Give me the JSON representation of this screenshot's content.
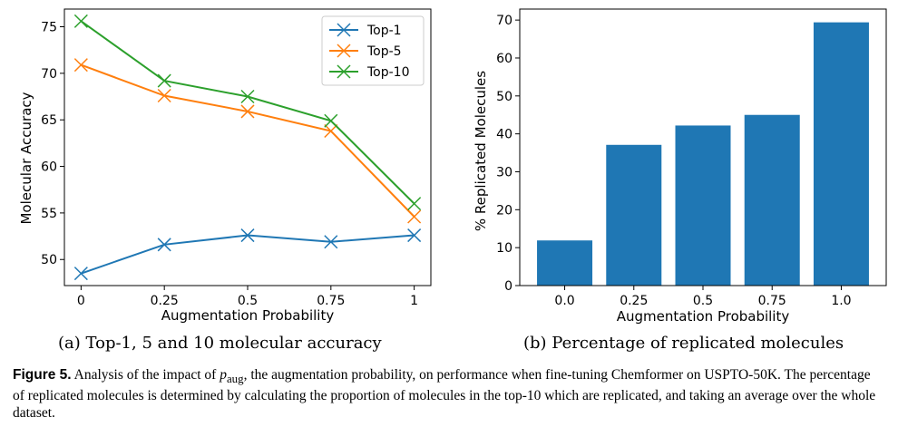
{
  "chart_data": [
    {
      "type": "line",
      "x": [
        0,
        0.25,
        0.5,
        0.75,
        1
      ],
      "xticks": [
        "0",
        "0.25",
        "0.5",
        "0.75",
        "1"
      ],
      "series": [
        {
          "name": "Top-1",
          "values": [
            48.5,
            51.6,
            52.6,
            51.9,
            52.6
          ],
          "color": "#1f77b4"
        },
        {
          "name": "Top-5",
          "values": [
            70.9,
            67.6,
            65.9,
            63.8,
            54.6
          ],
          "color": "#ff7f0e"
        },
        {
          "name": "Top-10",
          "values": [
            75.6,
            69.2,
            67.5,
            64.9,
            56.0
          ],
          "color": "#2ca02c"
        }
      ],
      "xlabel": "Augmentation Probability",
      "ylabel": "Molecular Accuracy",
      "xlim": [
        -0.05,
        1.05
      ],
      "ylim": [
        47.2,
        76.9
      ],
      "yticks": [
        50,
        55,
        60,
        65,
        70,
        75
      ],
      "marker": "x",
      "legend_position": "top-right",
      "grid": false
    },
    {
      "type": "bar",
      "categories": [
        "0.0",
        "0.25",
        "0.5",
        "0.75",
        "1.0"
      ],
      "values": [
        11.9,
        37.1,
        42.2,
        45.0,
        69.4
      ],
      "color": "#1f77b4",
      "xlabel": "Augmentation Probability",
      "ylabel": "% Replicated Molecules",
      "ylim": [
        0,
        72.9
      ],
      "yticks": [
        0,
        10,
        20,
        30,
        40,
        50,
        60,
        70
      ],
      "grid": false
    }
  ],
  "subcaptions": {
    "a": "(a) Top-1, 5 and 10 molecular accuracy",
    "b": "(b) Percentage of replicated molecules"
  },
  "caption": {
    "label": "Figure 5.",
    "text_1": " Analysis of the impact of ",
    "symbol": "p",
    "symbol_sub": "aug",
    "text_2": ", the augmentation probability, on performance when fine-tuning Chemformer on USPTO-50K. The percentage of replicated molecules is determined by calculating the proportion of molecules in the top-10 which are replicated, and taking an average over the whole dataset."
  }
}
